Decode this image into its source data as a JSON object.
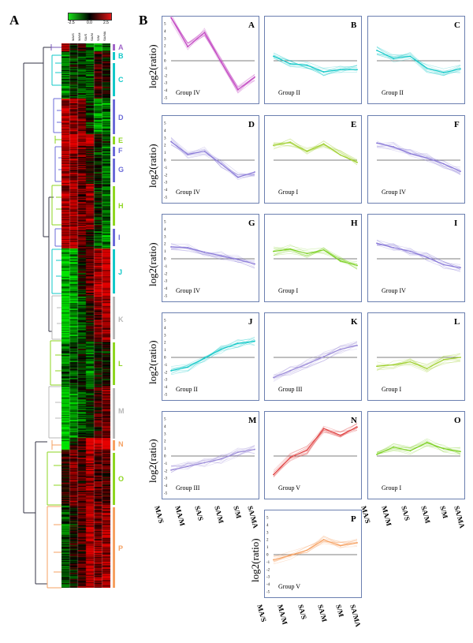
{
  "panel_a_label": "A",
  "panel_b_label": "B",
  "heatmap": {
    "legend_ticks": [
      "-2.5",
      "0.0",
      "2.5"
    ],
    "conditions": [
      "MA/S",
      "MA/M",
      "SA/S",
      "SA/M",
      "S/M",
      "SA/MA"
    ],
    "colors": {
      "low": "#16e016",
      "mid": "#000000",
      "high": "#e01616"
    }
  },
  "clusters": [
    {
      "label": "A",
      "color": "#a066c8"
    },
    {
      "label": "B",
      "color": "#12c8c8"
    },
    {
      "label": "C",
      "color": "#12c8c8"
    },
    {
      "label": "D",
      "color": "#6b6bd8"
    },
    {
      "label": "E",
      "color": "#8ed620"
    },
    {
      "label": "F",
      "color": "#6b6bd8"
    },
    {
      "label": "G",
      "color": "#6b6bd8"
    },
    {
      "label": "H",
      "color": "#8ed620"
    },
    {
      "label": "I",
      "color": "#6b6bd8"
    },
    {
      "label": "J",
      "color": "#12c8c8"
    },
    {
      "label": "K",
      "color": "#b8b8b8"
    },
    {
      "label": "L",
      "color": "#8ed620"
    },
    {
      "label": "M",
      "color": "#b8b8b8"
    },
    {
      "label": "N",
      "color": "#f6a060"
    },
    {
      "label": "O",
      "color": "#8ed620"
    },
    {
      "label": "P",
      "color": "#f6a060"
    }
  ],
  "axis": {
    "ylabel": "log2(ratio)",
    "yticks": [
      "5",
      "4",
      "3",
      "2",
      "1",
      "0",
      "-1",
      "-2",
      "-3",
      "-4",
      "-5"
    ],
    "xticks": [
      "MA/S",
      "MA/M",
      "SA/S",
      "SA/M",
      "S/M",
      "SA/MA"
    ]
  },
  "chart_data": [
    {
      "type": "line",
      "panel": "A",
      "group": "Group IV",
      "color": "#c040c0",
      "x": [
        "MA/S",
        "MA/M",
        "SA/S",
        "SA/M",
        "S/M",
        "SA/MA"
      ],
      "values": [
        5.8,
        1.9,
        3.8,
        -0.2,
        -3.9,
        -2.2
      ],
      "ylim": [
        -5,
        5
      ]
    },
    {
      "type": "line",
      "panel": "B",
      "group": "Group II",
      "color": "#12c8c8",
      "x": [
        "MA/S",
        "MA/M",
        "SA/S",
        "SA/M",
        "S/M",
        "SA/MA"
      ],
      "values": [
        0.6,
        -0.4,
        -0.6,
        -1.5,
        -1.2,
        -1.2
      ],
      "ylim": [
        -5,
        5
      ]
    },
    {
      "type": "line",
      "panel": "C",
      "group": "Group II",
      "color": "#12c8c8",
      "x": [
        "MA/S",
        "MA/M",
        "SA/S",
        "SA/M",
        "S/M",
        "SA/MA"
      ],
      "values": [
        1.4,
        0.3,
        0.6,
        -1.0,
        -1.6,
        -1.1
      ],
      "ylim": [
        -5,
        5
      ]
    },
    {
      "type": "line",
      "panel": "D",
      "group": "Group IV",
      "color": "#8a7ad8",
      "x": [
        "MA/S",
        "MA/M",
        "SA/S",
        "SA/M",
        "S/M",
        "SA/MA"
      ],
      "values": [
        2.5,
        0.8,
        1.2,
        -0.5,
        -2.3,
        -1.6
      ],
      "ylim": [
        -5,
        5
      ]
    },
    {
      "type": "line",
      "panel": "E",
      "group": "Group I",
      "color": "#a0d030",
      "x": [
        "MA/S",
        "MA/M",
        "SA/S",
        "SA/M",
        "S/M",
        "SA/MA"
      ],
      "values": [
        2.0,
        2.4,
        1.2,
        2.2,
        0.7,
        -0.3
      ],
      "ylim": [
        -5,
        5
      ]
    },
    {
      "type": "line",
      "panel": "F",
      "group": "Group IV",
      "color": "#8a7ad8",
      "x": [
        "MA/S",
        "MA/M",
        "SA/S",
        "SA/M",
        "S/M",
        "SA/MA"
      ],
      "values": [
        2.3,
        1.8,
        0.9,
        0.3,
        -0.5,
        -1.5
      ],
      "ylim": [
        -5,
        5
      ]
    },
    {
      "type": "line",
      "panel": "G",
      "group": "Group IV",
      "color": "#8a7ad8",
      "x": [
        "MA/S",
        "MA/M",
        "SA/S",
        "SA/M",
        "S/M",
        "SA/MA"
      ],
      "values": [
        1.6,
        1.5,
        0.9,
        0.4,
        -0.1,
        -0.7
      ],
      "ylim": [
        -5,
        5
      ]
    },
    {
      "type": "line",
      "panel": "H",
      "group": "Group I",
      "color": "#7ad020",
      "x": [
        "MA/S",
        "MA/M",
        "SA/S",
        "SA/M",
        "S/M",
        "SA/MA"
      ],
      "values": [
        1.0,
        1.3,
        0.7,
        1.2,
        -0.3,
        -0.9
      ],
      "ylim": [
        -5,
        5
      ]
    },
    {
      "type": "line",
      "panel": "I",
      "group": "Group IV",
      "color": "#8a7ad8",
      "x": [
        "MA/S",
        "MA/M",
        "SA/S",
        "SA/M",
        "S/M",
        "SA/MA"
      ],
      "values": [
        2.1,
        1.5,
        1.0,
        0.2,
        -0.8,
        -1.2
      ],
      "ylim": [
        -5,
        5
      ]
    },
    {
      "type": "line",
      "panel": "J",
      "group": "Group II",
      "color": "#12c8c8",
      "x": [
        "MA/S",
        "MA/M",
        "SA/S",
        "SA/M",
        "S/M",
        "SA/MA"
      ],
      "values": [
        -1.8,
        -1.3,
        -0.1,
        1.1,
        1.9,
        2.2
      ],
      "ylim": [
        -5,
        5
      ]
    },
    {
      "type": "line",
      "panel": "K",
      "group": "Group III",
      "color": "#9a8ad8",
      "x": [
        "MA/S",
        "MA/M",
        "SA/S",
        "SA/M",
        "S/M",
        "SA/MA"
      ],
      "values": [
        -2.7,
        -1.8,
        -0.9,
        0.1,
        1.1,
        1.6
      ],
      "ylim": [
        -5,
        5
      ]
    },
    {
      "type": "line",
      "panel": "L",
      "group": "Group I",
      "color": "#a0d030",
      "x": [
        "MA/S",
        "MA/M",
        "SA/S",
        "SA/M",
        "S/M",
        "SA/MA"
      ],
      "values": [
        -1.2,
        -1.0,
        -0.6,
        -1.5,
        -0.3,
        0.0
      ],
      "ylim": [
        -5,
        5
      ]
    },
    {
      "type": "line",
      "panel": "M",
      "group": "Group III",
      "color": "#9a8ad8",
      "x": [
        "MA/S",
        "MA/M",
        "SA/S",
        "SA/M",
        "S/M",
        "SA/MA"
      ],
      "values": [
        -1.9,
        -1.4,
        -0.9,
        -0.4,
        0.5,
        0.9
      ],
      "ylim": [
        -5,
        5
      ]
    },
    {
      "type": "line",
      "panel": "N",
      "group": "Group V",
      "color": "#e04040",
      "x": [
        "MA/S",
        "MA/M",
        "SA/S",
        "SA/M",
        "S/M",
        "SA/MA"
      ],
      "values": [
        -2.5,
        -0.2,
        0.8,
        3.7,
        2.8,
        3.9
      ],
      "ylim": [
        -5,
        5
      ]
    },
    {
      "type": "line",
      "panel": "O",
      "group": "Group I",
      "color": "#7ad020",
      "x": [
        "MA/S",
        "MA/M",
        "SA/S",
        "SA/M",
        "S/M",
        "SA/MA"
      ],
      "values": [
        0.2,
        1.2,
        0.7,
        1.8,
        1.0,
        0.6
      ],
      "ylim": [
        -5,
        5
      ]
    },
    {
      "type": "line",
      "panel": "P",
      "group": "Group V",
      "color": "#f6a060",
      "x": [
        "MA/S",
        "MA/M",
        "SA/S",
        "SA/M",
        "S/M",
        "SA/MA"
      ],
      "values": [
        -0.7,
        -0.1,
        0.6,
        2.0,
        1.2,
        1.6
      ],
      "ylim": [
        -5,
        5
      ]
    }
  ]
}
